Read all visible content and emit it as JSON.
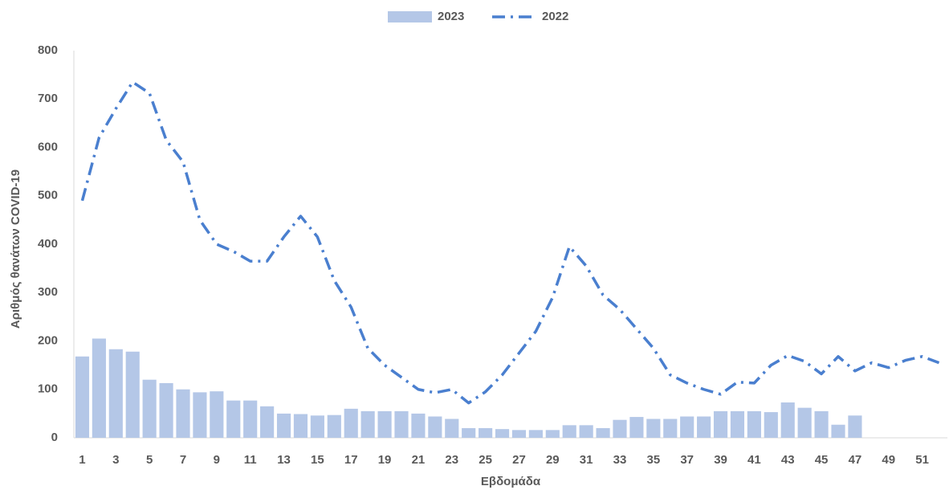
{
  "chart_data": {
    "type": "bar",
    "x_label": "Εβδομάδα",
    "y_label": "Αριθμός θανάτων COVID-19",
    "categories": [
      1,
      null,
      3,
      null,
      5,
      null,
      7,
      null,
      9,
      null,
      11,
      null,
      13,
      null,
      15,
      null,
      17,
      null,
      19,
      null,
      21,
      null,
      23,
      null,
      25,
      null,
      27,
      null,
      29,
      null,
      31,
      null,
      33,
      null,
      35,
      null,
      37,
      null,
      39,
      null,
      41,
      null,
      43,
      null,
      45,
      null,
      47,
      null,
      49,
      null,
      51,
      null
    ],
    "series": [
      {
        "name": "2023",
        "type": "bar",
        "color": "#b4c7e7",
        "values": [
          168,
          205,
          183,
          178,
          120,
          113,
          100,
          94,
          96,
          77,
          77,
          65,
          50,
          49,
          46,
          47,
          60,
          55,
          55,
          55,
          50,
          44,
          39,
          20,
          20,
          18,
          16,
          16,
          16,
          26,
          26,
          20,
          37,
          43,
          39,
          39,
          44,
          44,
          55,
          55,
          55,
          53,
          73,
          62,
          55,
          27,
          46,
          null,
          null,
          null,
          null,
          null
        ]
      },
      {
        "name": "2022",
        "type": "line",
        "color": "#4a7fcf",
        "values": [
          490,
          620,
          680,
          735,
          712,
          615,
          570,
          450,
          400,
          385,
          365,
          365,
          415,
          458,
          415,
          325,
          270,
          185,
          150,
          125,
          100,
          93,
          100,
          72,
          95,
          130,
          175,
          220,
          290,
          395,
          355,
          295,
          265,
          225,
          185,
          130,
          113,
          100,
          90,
          115,
          113,
          150,
          170,
          158,
          132,
          168,
          138,
          155,
          145,
          160,
          168,
          155
        ]
      }
    ],
    "ylim": [
      0,
      800
    ],
    "yticks": [
      0,
      100,
      200,
      300,
      400,
      500,
      600,
      700,
      800
    ],
    "legend": "top",
    "grid": false
  }
}
